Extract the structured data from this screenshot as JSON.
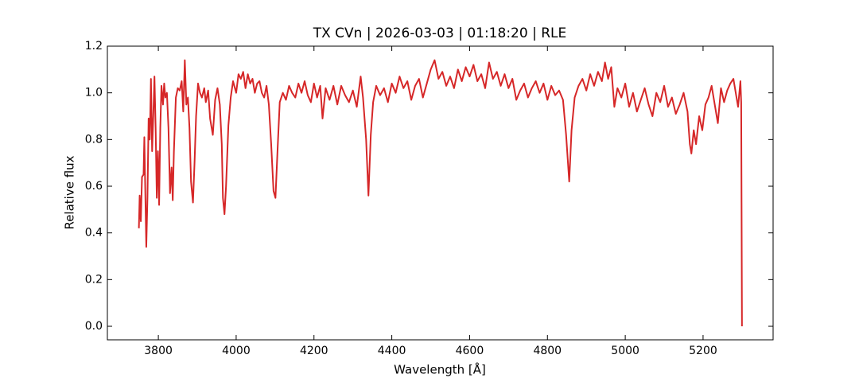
{
  "chart_data": {
    "type": "line",
    "title": "TX CVn | 2026-03-03 | 01:18:20 | RLE",
    "x_label": "Wavelength [Å]",
    "y_label": "Relative flux",
    "color": "#d62728",
    "x": [
      3750,
      3752,
      3755,
      3758,
      3762,
      3764,
      3766,
      3769,
      3772,
      3775,
      3778,
      3781,
      3784,
      3787,
      3790,
      3793,
      3796,
      3799,
      3802,
      3805,
      3808,
      3812,
      3815,
      3818,
      3822,
      3826,
      3830,
      3834,
      3837,
      3840,
      3845,
      3850,
      3855,
      3860,
      3864,
      3868,
      3872,
      3876,
      3880,
      3884,
      3889,
      3893,
      3897,
      3902,
      3907,
      3912,
      3918,
      3922,
      3928,
      3933,
      3940,
      3946,
      3952,
      3958,
      3963,
      3966,
      3970,
      3974,
      3980,
      3986,
      3992,
      4000,
      4006,
      4012,
      4018,
      4024,
      4030,
      4036,
      4042,
      4048,
      4054,
      4060,
      4066,
      4072,
      4078,
      4084,
      4090,
      4096,
      4101,
      4106,
      4112,
      4120,
      4128,
      4136,
      4144,
      4152,
      4160,
      4168,
      4176,
      4184,
      4192,
      4200,
      4208,
      4216,
      4222,
      4230,
      4240,
      4250,
      4260,
      4270,
      4280,
      4290,
      4300,
      4310,
      4320,
      4326,
      4334,
      4340,
      4346,
      4352,
      4360,
      4370,
      4380,
      4390,
      4400,
      4410,
      4420,
      4430,
      4440,
      4450,
      4460,
      4470,
      4480,
      4490,
      4500,
      4510,
      4520,
      4530,
      4540,
      4550,
      4560,
      4570,
      4580,
      4590,
      4600,
      4610,
      4620,
      4630,
      4640,
      4650,
      4660,
      4670,
      4680,
      4690,
      4700,
      4710,
      4720,
      4730,
      4740,
      4750,
      4760,
      4770,
      4780,
      4790,
      4800,
      4810,
      4820,
      4830,
      4840,
      4848,
      4856,
      4862,
      4870,
      4880,
      4890,
      4900,
      4910,
      4920,
      4930,
      4940,
      4948,
      4956,
      4964,
      4972,
      4980,
      4990,
      5000,
      5010,
      5020,
      5030,
      5040,
      5050,
      5060,
      5070,
      5080,
      5090,
      5100,
      5110,
      5120,
      5130,
      5140,
      5150,
      5160,
      5166,
      5170,
      5176,
      5182,
      5190,
      5198,
      5206,
      5214,
      5222,
      5230,
      5238,
      5246,
      5254,
      5262,
      5270,
      5278,
      5284,
      5290,
      5296,
      5298,
      5300
    ],
    "values": [
      0.42,
      0.56,
      0.45,
      0.64,
      0.65,
      0.81,
      0.62,
      0.34,
      0.55,
      0.89,
      0.8,
      1.06,
      0.75,
      0.9,
      1.07,
      0.85,
      0.55,
      0.75,
      0.52,
      0.85,
      1.03,
      0.95,
      1.04,
      0.98,
      1.0,
      0.85,
      0.57,
      0.68,
      0.54,
      0.75,
      0.98,
      1.02,
      1.01,
      1.05,
      0.92,
      1.14,
      0.95,
      0.98,
      0.85,
      0.62,
      0.53,
      0.7,
      0.9,
      1.04,
      1.0,
      0.98,
      1.02,
      0.96,
      1.01,
      0.89,
      0.82,
      0.97,
      1.02,
      0.95,
      0.78,
      0.55,
      0.48,
      0.6,
      0.86,
      0.98,
      1.05,
      1.0,
      1.08,
      1.06,
      1.09,
      1.02,
      1.08,
      1.04,
      1.06,
      1.0,
      1.04,
      1.05,
      1.0,
      0.98,
      1.03,
      0.95,
      0.78,
      0.58,
      0.55,
      0.74,
      0.96,
      1.0,
      0.97,
      1.03,
      1.0,
      0.98,
      1.04,
      1.0,
      1.05,
      0.99,
      0.96,
      1.04,
      0.98,
      1.03,
      0.89,
      1.02,
      0.97,
      1.03,
      0.95,
      1.03,
      0.99,
      0.96,
      1.01,
      0.94,
      1.07,
      0.98,
      0.8,
      0.56,
      0.82,
      0.96,
      1.03,
      0.99,
      1.02,
      0.96,
      1.04,
      1.0,
      1.07,
      1.02,
      1.05,
      0.97,
      1.03,
      1.06,
      0.98,
      1.04,
      1.1,
      1.14,
      1.06,
      1.09,
      1.03,
      1.07,
      1.02,
      1.1,
      1.05,
      1.11,
      1.07,
      1.12,
      1.05,
      1.08,
      1.02,
      1.13,
      1.06,
      1.09,
      1.03,
      1.08,
      1.02,
      1.06,
      0.97,
      1.01,
      1.04,
      0.98,
      1.02,
      1.05,
      1.0,
      1.04,
      0.97,
      1.03,
      0.99,
      1.01,
      0.97,
      0.82,
      0.62,
      0.84,
      0.98,
      1.03,
      1.06,
      1.01,
      1.08,
      1.03,
      1.09,
      1.05,
      1.13,
      1.06,
      1.11,
      0.94,
      1.02,
      0.98,
      1.04,
      0.94,
      1.0,
      0.92,
      0.97,
      1.02,
      0.95,
      0.9,
      1.0,
      0.96,
      1.03,
      0.94,
      0.98,
      0.91,
      0.95,
      1.0,
      0.92,
      0.78,
      0.74,
      0.84,
      0.78,
      0.9,
      0.84,
      0.95,
      0.98,
      1.03,
      0.95,
      0.87,
      1.02,
      0.96,
      1.01,
      1.04,
      1.06,
      1.0,
      0.94,
      1.05,
      0.96,
      0.0
    ],
    "xlim": [
      3669,
      5380
    ],
    "ylim": [
      -0.058,
      1.2
    ],
    "xticks": [
      3800,
      4000,
      4200,
      4400,
      4600,
      4800,
      5000,
      5200
    ],
    "yticks": [
      {
        "value": 0,
        "label": "0.0"
      },
      0.2,
      0.4,
      0.6,
      0.8,
      {
        "value": 1,
        "label": "1.0"
      },
      1.2
    ]
  }
}
